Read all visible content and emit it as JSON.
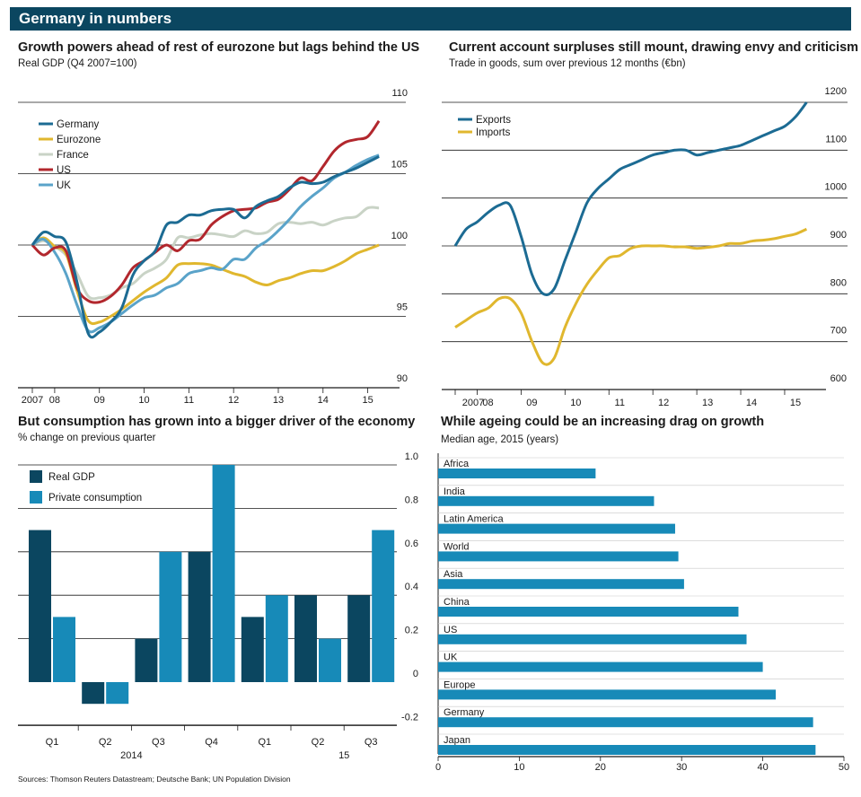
{
  "page": {
    "banner": "Germany in numbers",
    "sources": "Sources: Thomson Reuters Datastream; Deutsche Bank; UN Population Division",
    "colors": {
      "banner": "#0b4660",
      "germany": "#1c6b93",
      "eurozone": "#e0b72e",
      "france": "#c9d3c6",
      "us": "#b2272d",
      "uk": "#5aa3c9",
      "exports": "#1c6b93",
      "imports": "#e0b72e",
      "real_gdp": "#0b4660",
      "private_consumption": "#178ab8"
    }
  },
  "chart_data": [
    {
      "id": "gdp",
      "type": "line",
      "title": "Growth powers ahead of rest of eurozone but lags behind the US",
      "subtitle": "Real GDP (Q4 2007=100)",
      "ylim": [
        90,
        110
      ],
      "yticks": [
        90,
        95,
        100,
        105,
        110
      ],
      "xlim": [
        2007.75,
        2015.9
      ],
      "xticks": [
        {
          "value": 2007.75,
          "label": "2007"
        },
        {
          "value": 2008.25,
          "label": "08"
        },
        {
          "value": 2009.25,
          "label": "09"
        },
        {
          "value": 2010.25,
          "label": "10"
        },
        {
          "value": 2011.25,
          "label": "11"
        },
        {
          "value": 2012.25,
          "label": "12"
        },
        {
          "value": 2013.25,
          "label": "13"
        },
        {
          "value": 2014.25,
          "label": "14"
        },
        {
          "value": 2015.25,
          "label": "15"
        }
      ],
      "legend": "top-left",
      "x": [
        2007.75,
        2008.0,
        2008.25,
        2008.5,
        2008.75,
        2009.0,
        2009.25,
        2009.5,
        2009.75,
        2010.0,
        2010.25,
        2010.5,
        2010.75,
        2011.0,
        2011.25,
        2011.5,
        2011.75,
        2012.0,
        2012.25,
        2012.5,
        2012.75,
        2013.0,
        2013.25,
        2013.5,
        2013.75,
        2014.0,
        2014.25,
        2014.5,
        2014.75,
        2015.0,
        2015.25,
        2015.5
      ],
      "series": [
        {
          "name": "Germany",
          "color": "#1c6b93",
          "values": [
            100,
            100.9,
            100.6,
            100.2,
            97.4,
            93.8,
            93.9,
            94.6,
            95.6,
            97.9,
            98.9,
            99.6,
            101.4,
            101.6,
            102.1,
            102.1,
            102.4,
            102.5,
            102.5,
            101.9,
            102.7,
            103.1,
            103.4,
            104.0,
            104.4,
            104.3,
            104.4,
            104.8,
            105.1,
            105.4,
            105.8,
            106.2
          ]
        },
        {
          "name": "Eurozone",
          "color": "#e0b72e",
          "values": [
            100,
            100.5,
            99.9,
            99.4,
            96.8,
            94.7,
            94.6,
            95.0,
            95.5,
            96.1,
            96.7,
            97.2,
            97.7,
            98.6,
            98.7,
            98.7,
            98.6,
            98.3,
            98.0,
            97.8,
            97.4,
            97.2,
            97.5,
            97.7,
            98.0,
            98.2,
            98.2,
            98.5,
            98.9,
            99.4,
            99.7,
            100.0
          ]
        },
        {
          "name": "France",
          "color": "#c9d3c6",
          "values": [
            100,
            100.3,
            99.9,
            99.3,
            98.0,
            96.4,
            96.3,
            96.5,
            97.0,
            97.3,
            98.0,
            98.4,
            99.0,
            100.5,
            100.5,
            100.7,
            100.8,
            100.7,
            100.6,
            101.0,
            100.8,
            100.9,
            101.5,
            101.6,
            101.5,
            101.6,
            101.4,
            101.7,
            101.9,
            102.0,
            102.6,
            102.6
          ]
        },
        {
          "name": "US",
          "color": "#b2272d",
          "values": [
            100,
            99.3,
            99.8,
            99.6,
            97.0,
            96.1,
            96.0,
            96.4,
            97.2,
            98.4,
            98.9,
            99.5,
            100.0,
            99.6,
            100.3,
            100.4,
            101.4,
            102.0,
            102.4,
            102.5,
            102.6,
            103.0,
            103.2,
            103.9,
            104.7,
            104.5,
            105.5,
            106.6,
            107.2,
            107.4,
            107.6,
            108.7
          ]
        },
        {
          "name": "UK",
          "color": "#5aa3c9",
          "values": [
            100,
            100.4,
            99.5,
            98.0,
            95.8,
            94.0,
            94.2,
            94.6,
            95.2,
            95.8,
            96.3,
            96.5,
            97.0,
            97.3,
            98.0,
            98.2,
            98.4,
            98.3,
            99.0,
            99.0,
            99.8,
            100.3,
            101.0,
            101.8,
            102.7,
            103.4,
            104.0,
            104.7,
            105.1,
            105.6,
            106.0,
            106.3
          ]
        }
      ]
    },
    {
      "id": "trade",
      "type": "line",
      "title": "Current account surpluses still mount, drawing envy and criticism",
      "subtitle": "Trade in goods, sum over previous 12 months (€bn)",
      "ylim": [
        600,
        1200
      ],
      "yticks": [
        600,
        700,
        800,
        900,
        1000,
        1100,
        1200
      ],
      "xlim": [
        2007.5,
        2015.9
      ],
      "xticks": [
        {
          "value": 2007.5,
          "label": "2007"
        },
        {
          "value": 2008.0,
          "label": "08"
        },
        {
          "value": 2009.0,
          "label": "09"
        },
        {
          "value": 2010.0,
          "label": "10"
        },
        {
          "value": 2011.0,
          "label": "11"
        },
        {
          "value": 2012.0,
          "label": "12"
        },
        {
          "value": 2013.0,
          "label": "13"
        },
        {
          "value": 2014.0,
          "label": "14"
        },
        {
          "value": 2015.0,
          "label": "15"
        }
      ],
      "legend": "top-left",
      "x": [
        2007.5,
        2007.75,
        2008.0,
        2008.25,
        2008.5,
        2008.75,
        2009.0,
        2009.25,
        2009.5,
        2009.75,
        2010.0,
        2010.25,
        2010.5,
        2010.75,
        2011.0,
        2011.25,
        2011.5,
        2011.75,
        2012.0,
        2012.25,
        2012.5,
        2012.75,
        2013.0,
        2013.25,
        2013.5,
        2013.75,
        2014.0,
        2014.25,
        2014.5,
        2014.75,
        2015.0,
        2015.25,
        2015.5
      ],
      "series": [
        {
          "name": "Exports",
          "color": "#1c6b93",
          "values": [
            900,
            935,
            950,
            970,
            985,
            985,
            920,
            840,
            800,
            810,
            870,
            930,
            990,
            1020,
            1040,
            1060,
            1070,
            1080,
            1090,
            1095,
            1100,
            1100,
            1090,
            1095,
            1100,
            1105,
            1110,
            1120,
            1130,
            1140,
            1150,
            1170,
            1200
          ]
        },
        {
          "name": "Imports",
          "color": "#e0b72e",
          "values": [
            730,
            745,
            760,
            770,
            790,
            790,
            760,
            700,
            655,
            665,
            730,
            780,
            820,
            850,
            875,
            880,
            895,
            900,
            900,
            900,
            898,
            898,
            895,
            897,
            900,
            905,
            905,
            910,
            912,
            915,
            920,
            925,
            935
          ]
        }
      ]
    },
    {
      "id": "consumption",
      "type": "bar",
      "title": "But consumption has grown into a bigger driver of the economy",
      "subtitle": "% change on previous quarter",
      "ylim": [
        -0.2,
        1.0
      ],
      "yticks": [
        -0.2,
        0,
        0.2,
        0.4,
        0.6,
        0.8,
        1.0
      ],
      "categories": [
        "Q1",
        "Q2",
        "Q3",
        "Q4",
        "Q1",
        "Q2",
        "Q3"
      ],
      "year_labels": [
        {
          "label": "2014",
          "index": 1
        },
        {
          "label": "15",
          "index": 5
        }
      ],
      "legend": "top-left",
      "series": [
        {
          "name": "Real GDP",
          "color": "#0b4660",
          "values": [
            0.7,
            -0.1,
            0.2,
            0.6,
            0.3,
            0.4,
            0.4
          ]
        },
        {
          "name": "Private consumption",
          "color": "#178ab8",
          "values": [
            0.3,
            -0.1,
            0.6,
            1.0,
            0.4,
            0.2,
            0.7
          ]
        }
      ]
    },
    {
      "id": "age",
      "type": "bar",
      "orientation": "horizontal",
      "title": "While ageing could be an increasing drag on growth",
      "subtitle": "Median age, 2015 (years)",
      "xlim": [
        0,
        50
      ],
      "xticks": [
        0,
        10,
        20,
        30,
        40,
        50
      ],
      "categories": [
        "Africa",
        "India",
        "Latin America",
        "World",
        "Asia",
        "China",
        "US",
        "UK",
        "Europe",
        "Germany",
        "Japan"
      ],
      "values": [
        19.4,
        26.6,
        29.2,
        29.6,
        30.3,
        37.0,
        38.0,
        40.0,
        41.6,
        46.2,
        46.5
      ],
      "color": "#178ab8"
    }
  ]
}
